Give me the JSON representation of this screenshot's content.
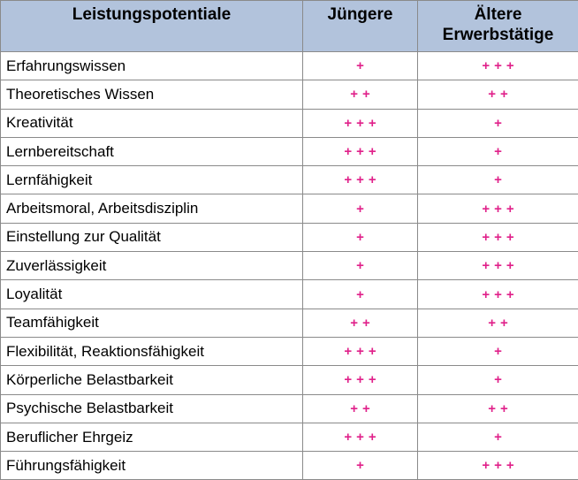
{
  "table": {
    "headers": {
      "criterion": "Leistungspotentiale",
      "younger": "Jüngere",
      "older_line1": "Ältere",
      "older_line2": "Erwerbstätige"
    },
    "rows": [
      {
        "criterion": "Erfahrungswissen",
        "younger": "+",
        "older": "+++"
      },
      {
        "criterion": "Theoretisches Wissen",
        "younger": "++",
        "older": "++"
      },
      {
        "criterion": "Kreativität",
        "younger": "+++",
        "older": "+"
      },
      {
        "criterion": "Lernbereitschaft",
        "younger": "+++",
        "older": "+"
      },
      {
        "criterion": "Lernfähigkeit",
        "younger": "+++",
        "older": "+"
      },
      {
        "criterion": "Arbeitsmoral, Arbeitsdisziplin",
        "younger": "+",
        "older": "+++"
      },
      {
        "criterion": "Einstellung zur Qualität",
        "younger": "+",
        "older": "+++"
      },
      {
        "criterion": "Zuverlässigkeit",
        "younger": "+",
        "older": "+++"
      },
      {
        "criterion": "Loyalität",
        "younger": "+",
        "older": "+++"
      },
      {
        "criterion": "Teamfähigkeit",
        "younger": "++",
        "older": "++"
      },
      {
        "criterion": "Flexibilität, Reaktionsfähigkeit",
        "younger": "+++",
        "older": "+"
      },
      {
        "criterion": "Körperliche Belastbarkeit",
        "younger": "+++",
        "older": "+"
      },
      {
        "criterion": "Psychische Belastbarkeit",
        "younger": "++",
        "older": "++"
      },
      {
        "criterion": "Beruflicher Ehrgeiz",
        "younger": "+++",
        "older": "+"
      },
      {
        "criterion": "Führungsfähigkeit",
        "younger": "+",
        "older": "+++"
      }
    ]
  },
  "colors": {
    "header_background": "#b2c3dc",
    "rating_color": "#e0218a",
    "grid_lines": "#8a8a8a"
  }
}
